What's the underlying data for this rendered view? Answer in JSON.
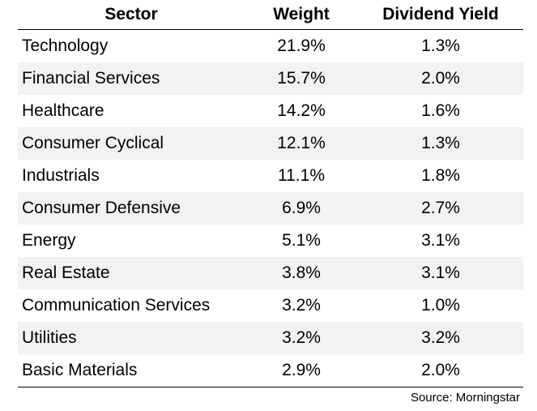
{
  "chart_data": {
    "type": "table",
    "columns": [
      "Sector",
      "Weight",
      "Dividend Yield"
    ],
    "rows": [
      [
        "Technology",
        "21.9%",
        "1.3%"
      ],
      [
        "Financial Services",
        "15.7%",
        "2.0%"
      ],
      [
        "Healthcare",
        "14.2%",
        "1.6%"
      ],
      [
        "Consumer Cyclical",
        "12.1%",
        "1.3%"
      ],
      [
        "Industrials",
        "11.1%",
        "1.8%"
      ],
      [
        "Consumer Defensive",
        "6.9%",
        "2.7%"
      ],
      [
        "Energy",
        "5.1%",
        "3.1%"
      ],
      [
        "Real Estate",
        "3.8%",
        "3.1%"
      ],
      [
        "Communication Services",
        "3.2%",
        "1.0%"
      ],
      [
        "Utilities",
        "3.2%",
        "3.2%"
      ],
      [
        "Basic Materials",
        "2.9%",
        "2.0%"
      ]
    ],
    "weight_values": [
      21.9,
      15.7,
      14.2,
      12.1,
      11.1,
      6.9,
      5.1,
      3.8,
      3.2,
      3.2,
      2.9
    ],
    "dividend_yield_values": [
      1.3,
      2.0,
      1.6,
      1.3,
      1.8,
      2.7,
      3.1,
      3.1,
      1.0,
      3.2,
      2.0
    ],
    "source": "Source: Morningstar"
  },
  "colors": {
    "row_shade": "#f2f2f2",
    "rule": "#000000"
  }
}
